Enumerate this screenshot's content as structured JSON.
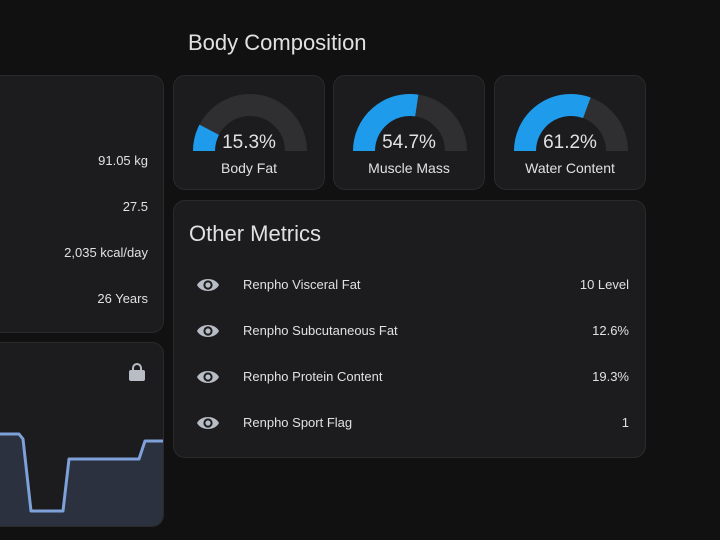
{
  "section_title": "Body Composition",
  "info_card": {
    "values": [
      "91.05 kg",
      "27.5",
      "2,035 kcal/day",
      "26 Years"
    ]
  },
  "graph_card": {
    "icon": "lock-icon"
  },
  "gauges": [
    {
      "value_text": "15.3%",
      "label": "Body Fat",
      "fraction": 0.153
    },
    {
      "value_text": "54.7%",
      "label": "Muscle Mass",
      "fraction": 0.547
    },
    {
      "value_text": "61.2%",
      "label": "Water Content",
      "fraction": 0.612
    }
  ],
  "other_metrics": {
    "title": "Other Metrics",
    "icon": "eye-icon",
    "rows": [
      {
        "name": "Renpho Visceral Fat",
        "value": "10 Level"
      },
      {
        "name": "Renpho Subcutaneous Fat",
        "value": "12.6%"
      },
      {
        "name": "Renpho Protein Content",
        "value": "19.3%"
      },
      {
        "name": "Renpho Sport Flag",
        "value": "1"
      }
    ]
  },
  "colors": {
    "accent": "#1e9bea",
    "gauge_track": "#2f2f31",
    "graph_line": "#7da1d8",
    "graph_fill": "#2c3140",
    "icon": "#b8bcc4"
  }
}
